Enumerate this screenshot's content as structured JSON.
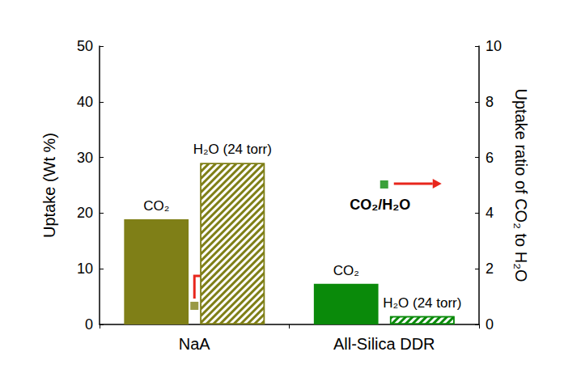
{
  "chart_data": {
    "type": "bar",
    "categories": [
      "NaA",
      "All-Silica DDR"
    ],
    "ylabel": "Uptake (Wt %)",
    "y2label": "Uptake ratio of CO₂ to H₂O",
    "ylim": [
      0,
      50
    ],
    "yticks": [
      0,
      10,
      20,
      30,
      40,
      50
    ],
    "y2lim": [
      0,
      10
    ],
    "y2ticks": [
      0,
      2,
      4,
      6,
      8,
      10
    ],
    "grid": false,
    "series": [
      {
        "name": "CO₂",
        "type": "bar",
        "colors": [
          "#7f7f17",
          "#0a8a0a"
        ],
        "values": [
          18.9,
          7.3
        ]
      },
      {
        "name": "H₂O (24 torr)",
        "type": "bar",
        "colors": [
          "#7f7f17",
          "#0a8a0a"
        ],
        "values": [
          29,
          1.5
        ]
      },
      {
        "name": "CO₂/H₂O",
        "type": "scatter",
        "axis": "y2",
        "marker": "square",
        "colors": [
          "#7f7f17",
          "#0a8a0a"
        ],
        "values": [
          0.67,
          5.03
        ]
      }
    ]
  }
}
